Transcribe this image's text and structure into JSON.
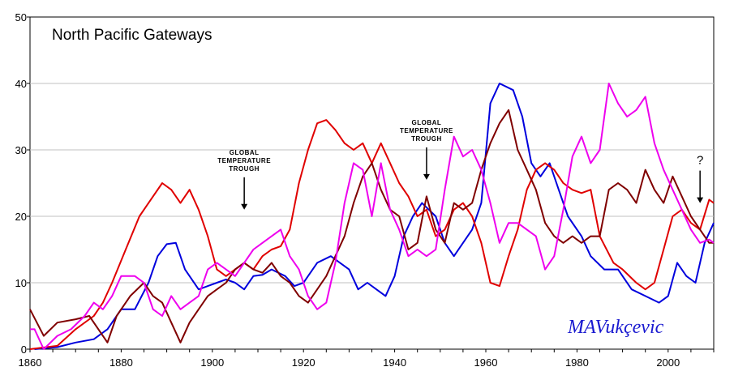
{
  "chart_data": {
    "type": "line",
    "title": "North Pacific Gateways",
    "xlim": [
      1860,
      2010
    ],
    "ylim": [
      0,
      50
    ],
    "x_ticks": [
      1860,
      1880,
      1900,
      1920,
      1940,
      1960,
      1980,
      2000
    ],
    "y_ticks": [
      0,
      10,
      20,
      30,
      40,
      50
    ],
    "grid": "horizontal",
    "annotations": [
      {
        "lines": [
          "GLOBAL",
          "TEMPERATURE",
          "TROUGH"
        ],
        "x": 1907,
        "y": 21
      },
      {
        "lines": [
          "GLOBAL",
          "TEMPERATURE",
          "TROUGH"
        ],
        "x": 1947,
        "y": 25.5
      },
      {
        "lines": [
          "?"
        ],
        "x": 2007,
        "y": 22
      }
    ],
    "signature": "MAVukçevic",
    "colors": {
      "blue": "#0000dd",
      "red": "#e00000",
      "darkred": "#800000",
      "magenta": "#ee00ee"
    },
    "series": [
      {
        "color": "#0000dd",
        "points": [
          [
            1861,
            0
          ],
          [
            1866,
            0.3
          ],
          [
            1870,
            1
          ],
          [
            1874,
            1.5
          ],
          [
            1877,
            3
          ],
          [
            1880,
            6
          ],
          [
            1883,
            6
          ],
          [
            1886,
            10
          ],
          [
            1888,
            14
          ],
          [
            1890,
            15.8
          ],
          [
            1892,
            16
          ],
          [
            1894,
            12
          ],
          [
            1897,
            9
          ],
          [
            1899,
            9.5
          ],
          [
            1901,
            10
          ],
          [
            1903,
            10.5
          ],
          [
            1905,
            10
          ],
          [
            1907,
            9
          ],
          [
            1909,
            11
          ],
          [
            1911,
            11.2
          ],
          [
            1913,
            12
          ],
          [
            1916,
            11
          ],
          [
            1918,
            9.5
          ],
          [
            1920,
            10
          ],
          [
            1923,
            13
          ],
          [
            1926,
            14
          ],
          [
            1928,
            13
          ],
          [
            1930,
            12
          ],
          [
            1932,
            9
          ],
          [
            1934,
            10
          ],
          [
            1936,
            9
          ],
          [
            1938,
            8
          ],
          [
            1940,
            11
          ],
          [
            1942,
            17
          ],
          [
            1944,
            20
          ],
          [
            1946,
            22
          ],
          [
            1949,
            20
          ],
          [
            1951,
            16
          ],
          [
            1953,
            14
          ],
          [
            1955,
            16
          ],
          [
            1957,
            18
          ],
          [
            1959,
            22
          ],
          [
            1961,
            37
          ],
          [
            1963,
            40
          ],
          [
            1966,
            39
          ],
          [
            1968,
            35
          ],
          [
            1970,
            28
          ],
          [
            1972,
            26
          ],
          [
            1974,
            28
          ],
          [
            1976,
            24
          ],
          [
            1978,
            20
          ],
          [
            1981,
            17
          ],
          [
            1983,
            14
          ],
          [
            1986,
            12
          ],
          [
            1989,
            12
          ],
          [
            1992,
            9
          ],
          [
            1995,
            8
          ],
          [
            1998,
            7
          ],
          [
            2000,
            8
          ],
          [
            2002,
            13
          ],
          [
            2004,
            11
          ],
          [
            2006,
            10
          ],
          [
            2008,
            16
          ],
          [
            2010,
            19
          ]
        ]
      },
      {
        "color": "#e00000",
        "points": [
          [
            1860,
            0
          ],
          [
            1866,
            0.5
          ],
          [
            1870,
            3
          ],
          [
            1874,
            5
          ],
          [
            1876,
            7
          ],
          [
            1878,
            10
          ],
          [
            1881,
            15
          ],
          [
            1884,
            20
          ],
          [
            1887,
            23
          ],
          [
            1889,
            25
          ],
          [
            1891,
            24
          ],
          [
            1893,
            22
          ],
          [
            1895,
            24
          ],
          [
            1897,
            21
          ],
          [
            1899,
            17
          ],
          [
            1901,
            12
          ],
          [
            1903,
            11
          ],
          [
            1905,
            12
          ],
          [
            1907,
            13
          ],
          [
            1909,
            12
          ],
          [
            1911,
            14
          ],
          [
            1913,
            15
          ],
          [
            1915,
            15.5
          ],
          [
            1917,
            18
          ],
          [
            1919,
            25
          ],
          [
            1921,
            30
          ],
          [
            1923,
            34
          ],
          [
            1925,
            34.5
          ],
          [
            1927,
            33
          ],
          [
            1929,
            31
          ],
          [
            1931,
            30
          ],
          [
            1933,
            31
          ],
          [
            1935,
            28
          ],
          [
            1937,
            31
          ],
          [
            1939,
            28
          ],
          [
            1941,
            25
          ],
          [
            1943,
            23
          ],
          [
            1945,
            20
          ],
          [
            1947,
            21
          ],
          [
            1949,
            17
          ],
          [
            1951,
            18
          ],
          [
            1953,
            21
          ],
          [
            1955,
            22
          ],
          [
            1957,
            20
          ],
          [
            1959,
            16
          ],
          [
            1961,
            10
          ],
          [
            1963,
            9.5
          ],
          [
            1965,
            14
          ],
          [
            1967,
            18
          ],
          [
            1969,
            24
          ],
          [
            1971,
            27
          ],
          [
            1973,
            28
          ],
          [
            1975,
            27
          ],
          [
            1977,
            25
          ],
          [
            1979,
            24
          ],
          [
            1981,
            23.5
          ],
          [
            1983,
            24
          ],
          [
            1985,
            17
          ],
          [
            1988,
            13
          ],
          [
            1990,
            12
          ],
          [
            1993,
            10
          ],
          [
            1995,
            9
          ],
          [
            1997,
            10
          ],
          [
            1999,
            15
          ],
          [
            2001,
            20
          ],
          [
            2003,
            21
          ],
          [
            2005,
            19
          ],
          [
            2007,
            18
          ],
          [
            2009,
            22.5
          ],
          [
            2010,
            22
          ]
        ]
      },
      {
        "color": "#800000",
        "points": [
          [
            1860,
            6
          ],
          [
            1863,
            2
          ],
          [
            1866,
            4
          ],
          [
            1870,
            4.5
          ],
          [
            1873,
            5
          ],
          [
            1875,
            3
          ],
          [
            1877,
            1
          ],
          [
            1879,
            5
          ],
          [
            1882,
            8
          ],
          [
            1885,
            10
          ],
          [
            1887,
            8
          ],
          [
            1889,
            7
          ],
          [
            1891,
            4
          ],
          [
            1893,
            1
          ],
          [
            1895,
            4
          ],
          [
            1897,
            6
          ],
          [
            1899,
            8
          ],
          [
            1901,
            9
          ],
          [
            1903,
            10
          ],
          [
            1905,
            12
          ],
          [
            1907,
            13
          ],
          [
            1909,
            12
          ],
          [
            1911,
            11.5
          ],
          [
            1913,
            13
          ],
          [
            1915,
            11
          ],
          [
            1917,
            10
          ],
          [
            1919,
            8
          ],
          [
            1921,
            7
          ],
          [
            1923,
            9
          ],
          [
            1925,
            11
          ],
          [
            1927,
            14
          ],
          [
            1929,
            17
          ],
          [
            1931,
            22
          ],
          [
            1933,
            26
          ],
          [
            1935,
            28
          ],
          [
            1937,
            24
          ],
          [
            1939,
            21
          ],
          [
            1941,
            20
          ],
          [
            1943,
            15
          ],
          [
            1945,
            16
          ],
          [
            1947,
            23
          ],
          [
            1949,
            18
          ],
          [
            1951,
            16
          ],
          [
            1953,
            22
          ],
          [
            1955,
            21
          ],
          [
            1957,
            22
          ],
          [
            1959,
            27
          ],
          [
            1961,
            31
          ],
          [
            1963,
            34
          ],
          [
            1965,
            36
          ],
          [
            1967,
            30
          ],
          [
            1969,
            27
          ],
          [
            1971,
            24
          ],
          [
            1973,
            19
          ],
          [
            1975,
            17
          ],
          [
            1977,
            16
          ],
          [
            1979,
            17
          ],
          [
            1981,
            16
          ],
          [
            1983,
            17
          ],
          [
            1985,
            17
          ],
          [
            1987,
            24
          ],
          [
            1989,
            25
          ],
          [
            1991,
            24
          ],
          [
            1993,
            22
          ],
          [
            1995,
            27
          ],
          [
            1997,
            24
          ],
          [
            1999,
            22
          ],
          [
            2001,
            26
          ],
          [
            2003,
            23
          ],
          [
            2005,
            20
          ],
          [
            2007,
            18
          ],
          [
            2009,
            16
          ],
          [
            2010,
            16
          ]
        ]
      },
      {
        "color": "#ee00ee",
        "points": [
          [
            1860,
            3
          ],
          [
            1861,
            3
          ],
          [
            1863,
            0
          ],
          [
            1866,
            2
          ],
          [
            1869,
            3
          ],
          [
            1872,
            5
          ],
          [
            1874,
            7
          ],
          [
            1876,
            6
          ],
          [
            1878,
            8
          ],
          [
            1880,
            11
          ],
          [
            1883,
            11
          ],
          [
            1885,
            10
          ],
          [
            1887,
            6
          ],
          [
            1889,
            5
          ],
          [
            1891,
            8
          ],
          [
            1893,
            6
          ],
          [
            1895,
            7
          ],
          [
            1897,
            8
          ],
          [
            1899,
            12
          ],
          [
            1901,
            13
          ],
          [
            1903,
            12
          ],
          [
            1905,
            11
          ],
          [
            1907,
            13
          ],
          [
            1909,
            15
          ],
          [
            1911,
            16
          ],
          [
            1913,
            17
          ],
          [
            1915,
            18
          ],
          [
            1917,
            14
          ],
          [
            1919,
            12
          ],
          [
            1921,
            8
          ],
          [
            1923,
            6
          ],
          [
            1925,
            7
          ],
          [
            1927,
            13
          ],
          [
            1929,
            22
          ],
          [
            1931,
            28
          ],
          [
            1933,
            27
          ],
          [
            1935,
            20
          ],
          [
            1937,
            28
          ],
          [
            1939,
            21
          ],
          [
            1941,
            18
          ],
          [
            1943,
            14
          ],
          [
            1945,
            15
          ],
          [
            1947,
            14
          ],
          [
            1949,
            15
          ],
          [
            1951,
            24
          ],
          [
            1953,
            32
          ],
          [
            1955,
            29
          ],
          [
            1957,
            30
          ],
          [
            1959,
            27
          ],
          [
            1961,
            22
          ],
          [
            1963,
            16
          ],
          [
            1965,
            19
          ],
          [
            1967,
            19
          ],
          [
            1969,
            18
          ],
          [
            1971,
            17
          ],
          [
            1973,
            12
          ],
          [
            1975,
            14
          ],
          [
            1977,
            21
          ],
          [
            1979,
            29
          ],
          [
            1981,
            32
          ],
          [
            1983,
            28
          ],
          [
            1985,
            30
          ],
          [
            1987,
            40
          ],
          [
            1989,
            37
          ],
          [
            1991,
            35
          ],
          [
            1993,
            36
          ],
          [
            1995,
            38
          ],
          [
            1997,
            31
          ],
          [
            1999,
            27
          ],
          [
            2001,
            24
          ],
          [
            2003,
            21
          ],
          [
            2005,
            18
          ],
          [
            2007,
            16
          ],
          [
            2009,
            16.5
          ],
          [
            2010,
            16
          ]
        ]
      }
    ]
  }
}
